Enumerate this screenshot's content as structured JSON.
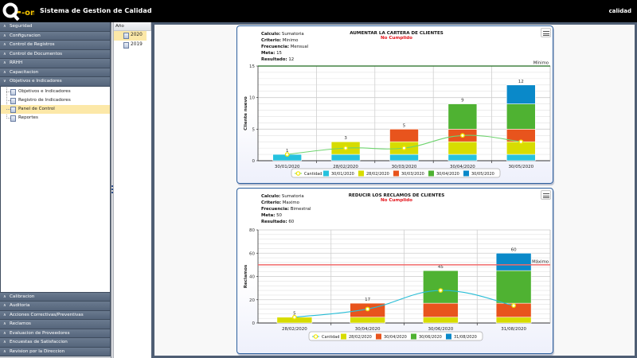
{
  "header": {
    "logo_text": "Q-on",
    "app_title": "Sistema de Gestion de Calidad",
    "user": "calidad"
  },
  "sidebar": {
    "top_sections": [
      {
        "label": "Seguridad",
        "expanded": false
      },
      {
        "label": "Configuracion",
        "expanded": false
      },
      {
        "label": "Control de Registros",
        "expanded": false
      },
      {
        "label": "Control de Documentos",
        "expanded": false
      },
      {
        "label": "RRHH",
        "expanded": false
      },
      {
        "label": "Capacitacion",
        "expanded": false
      },
      {
        "label": "Objetivos e Indicadores",
        "expanded": true
      }
    ],
    "tree_items": [
      {
        "label": "Objetivos e Indicadores",
        "selected": false
      },
      {
        "label": "Registro de Indicadores",
        "selected": false
      },
      {
        "label": "Panel de Control",
        "selected": true
      },
      {
        "label": "Reportes",
        "selected": false
      }
    ],
    "bottom_sections": [
      {
        "label": "Calibracion"
      },
      {
        "label": "Auditoria"
      },
      {
        "label": "Acciones Correctivas/Preventivas"
      },
      {
        "label": "Reclamos"
      },
      {
        "label": "Evaluacion de Proveedores"
      },
      {
        "label": "Encuestas de Satisfaccion"
      },
      {
        "label": "Revision por la Direccion"
      }
    ]
  },
  "year_panel": {
    "header": "Año",
    "years": [
      {
        "label": "2020",
        "selected": true
      },
      {
        "label": "2019",
        "selected": false
      }
    ]
  },
  "colors": {
    "cyan": "#26c2de",
    "yellow": "#d7dc00",
    "orange": "#e8541d",
    "green": "#4fb232",
    "blue": "#0a89c9",
    "status_red": "#e3141b",
    "minimo_line": "#1f6b1f",
    "maximo_line": "#f06a6a"
  },
  "chart_data": [
    {
      "type": "bar",
      "stacked": true,
      "title": "AUMENTAR LA CARTERA DE CLIENTES",
      "status": "No Cumplido",
      "info": {
        "calculo_label": "Calculo:",
        "calculo": "Sumatoria",
        "criterio_label": "Criterio:",
        "criterio": "Minimo",
        "frecuencia_label": "Frecuencia:",
        "frecuencia": "Mensual",
        "meta_label": "Meta:",
        "meta": "15",
        "resultado_label": "Resultado:",
        "resultado": "12"
      },
      "ylabel": "Cliente nuevo",
      "xlabel": "",
      "ylim": [
        0,
        15
      ],
      "yticks": [
        0,
        5,
        10,
        15
      ],
      "categories": [
        "30/01/2020",
        "28/02/2020",
        "30/03/2020",
        "30/04/2020",
        "30/05/2020"
      ],
      "series": [
        {
          "name": "30/01/2020",
          "color_key": "cyan",
          "values": [
            1,
            1,
            1,
            1,
            1
          ]
        },
        {
          "name": "28/02/2020",
          "color_key": "yellow",
          "values": [
            0,
            2,
            2,
            2,
            2
          ]
        },
        {
          "name": "30/03/2020",
          "color_key": "orange",
          "values": [
            0,
            0,
            2,
            2,
            2
          ]
        },
        {
          "name": "30/04/2020",
          "color_key": "green",
          "values": [
            0,
            0,
            0,
            4,
            4
          ]
        },
        {
          "name": "30/05/2020",
          "color_key": "blue",
          "values": [
            0,
            0,
            0,
            0,
            3
          ]
        }
      ],
      "totals": [
        1,
        3,
        5,
        9,
        12
      ],
      "line_series": {
        "name": "Cantidad",
        "color": "#6fd46f",
        "values": [
          1,
          2,
          2,
          4,
          3
        ]
      },
      "threshold": {
        "label": "Mínimo",
        "value": 15,
        "color_key": "minimo_line"
      },
      "legend_position": "bottom-center",
      "grid": true
    },
    {
      "type": "bar",
      "stacked": true,
      "title": "REDUCIR LOS RECLAMOS DE CLIENTES",
      "status": "No Cumplido",
      "info": {
        "calculo_label": "Calculo:",
        "calculo": "Sumatoria",
        "criterio_label": "Criterio:",
        "criterio": "Maximo",
        "frecuencia_label": "Frecuencia:",
        "frecuencia": "Bimestral",
        "meta_label": "Meta:",
        "meta": "50",
        "resultado_label": "Resultado:",
        "resultado": "60"
      },
      "ylabel": "Reclamos",
      "xlabel": "",
      "ylim": [
        0,
        80
      ],
      "yticks": [
        0,
        20,
        40,
        60,
        80
      ],
      "categories": [
        "28/02/2020",
        "30/04/2020",
        "30/06/2020",
        "31/08/2020"
      ],
      "series": [
        {
          "name": "28/02/2020",
          "color_key": "yellow",
          "values": [
            5,
            5,
            5,
            5
          ]
        },
        {
          "name": "30/04/2020",
          "color_key": "orange",
          "values": [
            0,
            12,
            12,
            12
          ]
        },
        {
          "name": "30/06/2020",
          "color_key": "green",
          "values": [
            0,
            0,
            28,
            28
          ]
        },
        {
          "name": "31/08/2020",
          "color_key": "blue",
          "values": [
            0,
            0,
            0,
            15
          ]
        }
      ],
      "totals": [
        5,
        17,
        45,
        60
      ],
      "line_series": {
        "name": "Cantidad",
        "color": "#27bdd6",
        "values": [
          5,
          12,
          28,
          15
        ]
      },
      "threshold": {
        "label": "Máximo",
        "value": 50,
        "color_key": "maximo_line"
      },
      "legend_position": "bottom-center",
      "grid": true
    }
  ]
}
